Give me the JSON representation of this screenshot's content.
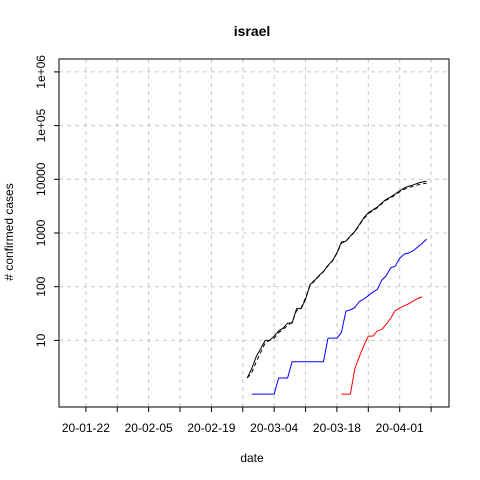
{
  "chart_data": {
    "type": "line",
    "title": "israel",
    "xlabel": "date",
    "ylabel": "# confirmed cases",
    "y_scale": "log",
    "grid": true,
    "grid_style": "dashed",
    "legend": "none",
    "xlim": [
      "2020-01-16",
      "2020-04-12"
    ],
    "ylim": [
      1,
      1000000
    ],
    "x_ticks": [
      {
        "date": "2020-01-22",
        "label": "20-01-22"
      },
      {
        "date": "2020-01-29",
        "label": ""
      },
      {
        "date": "2020-02-05",
        "label": "20-02-05"
      },
      {
        "date": "2020-02-12",
        "label": ""
      },
      {
        "date": "2020-02-19",
        "label": "20-02-19"
      },
      {
        "date": "2020-02-26",
        "label": ""
      },
      {
        "date": "2020-03-04",
        "label": "20-03-04"
      },
      {
        "date": "2020-03-11",
        "label": ""
      },
      {
        "date": "2020-03-18",
        "label": "20-03-18"
      },
      {
        "date": "2020-03-25",
        "label": ""
      },
      {
        "date": "2020-04-01",
        "label": "20-04-01"
      },
      {
        "date": "2020-04-08",
        "label": ""
      }
    ],
    "y_ticks": [
      {
        "value": 10,
        "label": "10"
      },
      {
        "value": 100,
        "label": "100"
      },
      {
        "value": 1000,
        "label": "1000"
      },
      {
        "value": 10000,
        "label": "10000"
      },
      {
        "value": 100000,
        "label": "1e+05"
      },
      {
        "value": 1000000,
        "label": "1e+06"
      }
    ],
    "series": [
      {
        "color": "#000000",
        "dash": "",
        "points": [
          [
            "2020-02-27",
            2
          ],
          [
            "2020-02-28",
            3
          ],
          [
            "2020-02-29",
            5
          ],
          [
            "2020-03-01",
            7
          ],
          [
            "2020-03-02",
            10
          ],
          [
            "2020-03-03",
            10
          ],
          [
            "2020-03-04",
            12
          ],
          [
            "2020-03-05",
            15
          ],
          [
            "2020-03-06",
            17
          ],
          [
            "2020-03-07",
            21
          ],
          [
            "2020-03-08",
            21
          ],
          [
            "2020-03-09",
            39
          ],
          [
            "2020-03-10",
            39
          ],
          [
            "2020-03-11",
            58
          ],
          [
            "2020-03-12",
            109
          ],
          [
            "2020-03-13",
            131
          ],
          [
            "2020-03-14",
            161
          ],
          [
            "2020-03-15",
            193
          ],
          [
            "2020-03-16",
            250
          ],
          [
            "2020-03-17",
            304
          ],
          [
            "2020-03-18",
            427
          ],
          [
            "2020-03-19",
            677
          ],
          [
            "2020-03-20",
            705
          ],
          [
            "2020-03-21",
            883
          ],
          [
            "2020-03-22",
            1071
          ],
          [
            "2020-03-23",
            1442
          ],
          [
            "2020-03-24",
            1930
          ],
          [
            "2020-03-25",
            2369
          ],
          [
            "2020-03-26",
            2693
          ],
          [
            "2020-03-27",
            3035
          ],
          [
            "2020-03-28",
            3619
          ],
          [
            "2020-03-29",
            4247
          ],
          [
            "2020-03-30",
            4695
          ],
          [
            "2020-03-31",
            5358
          ],
          [
            "2020-04-01",
            6092
          ],
          [
            "2020-04-02",
            6857
          ],
          [
            "2020-04-03",
            7428
          ],
          [
            "2020-04-04",
            7851
          ],
          [
            "2020-04-05",
            8430
          ],
          [
            "2020-04-06",
            8904
          ],
          [
            "2020-04-07",
            9248
          ]
        ]
      },
      {
        "color": "#000000",
        "dash": "4,3",
        "points": [
          [
            "2020-02-27",
            2
          ],
          [
            "2020-02-28",
            2.5
          ],
          [
            "2020-02-29",
            4
          ],
          [
            "2020-03-01",
            6
          ],
          [
            "2020-03-02",
            9
          ],
          [
            "2020-03-03",
            10
          ],
          [
            "2020-03-04",
            11
          ],
          [
            "2020-03-05",
            14
          ],
          [
            "2020-03-06",
            16
          ],
          [
            "2020-03-07",
            19
          ],
          [
            "2020-03-08",
            22
          ],
          [
            "2020-03-09",
            36
          ],
          [
            "2020-03-10",
            40
          ],
          [
            "2020-03-11",
            62
          ],
          [
            "2020-03-12",
            105
          ],
          [
            "2020-03-13",
            128
          ],
          [
            "2020-03-14",
            158
          ],
          [
            "2020-03-15",
            190
          ],
          [
            "2020-03-16",
            245
          ],
          [
            "2020-03-17",
            300
          ],
          [
            "2020-03-18",
            420
          ],
          [
            "2020-03-19",
            650
          ],
          [
            "2020-03-20",
            700
          ],
          [
            "2020-03-21",
            860
          ],
          [
            "2020-03-22",
            1050
          ],
          [
            "2020-03-23",
            1400
          ],
          [
            "2020-03-24",
            1850
          ],
          [
            "2020-03-25",
            2300
          ],
          [
            "2020-03-26",
            2600
          ],
          [
            "2020-03-27",
            2950
          ],
          [
            "2020-03-28",
            3500
          ],
          [
            "2020-03-29",
            4100
          ],
          [
            "2020-03-30",
            4500
          ],
          [
            "2020-03-31",
            5100
          ],
          [
            "2020-04-01",
            5800
          ],
          [
            "2020-04-02",
            6500
          ],
          [
            "2020-04-03",
            7000
          ],
          [
            "2020-04-04",
            7400
          ],
          [
            "2020-04-05",
            7850
          ],
          [
            "2020-04-06",
            8200
          ],
          [
            "2020-04-07",
            8500
          ]
        ]
      },
      {
        "color": "#0000ff",
        "dash": "",
        "points": [
          [
            "2020-02-28",
            1
          ],
          [
            "2020-02-29",
            1
          ],
          [
            "2020-03-01",
            1
          ],
          [
            "2020-03-02",
            1
          ],
          [
            "2020-03-03",
            1
          ],
          [
            "2020-03-04",
            1
          ],
          [
            "2020-03-05",
            2
          ],
          [
            "2020-03-06",
            2
          ],
          [
            "2020-03-07",
            2
          ],
          [
            "2020-03-08",
            4
          ],
          [
            "2020-03-09",
            4
          ],
          [
            "2020-03-10",
            4
          ],
          [
            "2020-03-11",
            4
          ],
          [
            "2020-03-12",
            4
          ],
          [
            "2020-03-13",
            4
          ],
          [
            "2020-03-14",
            4
          ],
          [
            "2020-03-15",
            4
          ],
          [
            "2020-03-16",
            11
          ],
          [
            "2020-03-17",
            11
          ],
          [
            "2020-03-18",
            11
          ],
          [
            "2020-03-19",
            14
          ],
          [
            "2020-03-20",
            35
          ],
          [
            "2020-03-21",
            37
          ],
          [
            "2020-03-22",
            41
          ],
          [
            "2020-03-23",
            53
          ],
          [
            "2020-03-24",
            59
          ],
          [
            "2020-03-25",
            68
          ],
          [
            "2020-03-26",
            79
          ],
          [
            "2020-03-27",
            89
          ],
          [
            "2020-03-28",
            132
          ],
          [
            "2020-03-29",
            161
          ],
          [
            "2020-03-30",
            224
          ],
          [
            "2020-03-31",
            241
          ],
          [
            "2020-04-01",
            338
          ],
          [
            "2020-04-02",
            404
          ],
          [
            "2020-04-03",
            424
          ],
          [
            "2020-04-04",
            467
          ],
          [
            "2020-04-05",
            545
          ],
          [
            "2020-04-06",
            640
          ],
          [
            "2020-04-07",
            770
          ]
        ]
      },
      {
        "color": "#ff0000",
        "dash": "",
        "points": [
          [
            "2020-03-19",
            1
          ],
          [
            "2020-03-20",
            1
          ],
          [
            "2020-03-21",
            1
          ],
          [
            "2020-03-22",
            3
          ],
          [
            "2020-03-23",
            5
          ],
          [
            "2020-03-24",
            8
          ],
          [
            "2020-03-25",
            12
          ],
          [
            "2020-03-26",
            12
          ],
          [
            "2020-03-27",
            15
          ],
          [
            "2020-03-28",
            16
          ],
          [
            "2020-03-29",
            20
          ],
          [
            "2020-03-30",
            26
          ],
          [
            "2020-03-31",
            36
          ],
          [
            "2020-04-01",
            40
          ],
          [
            "2020-04-02",
            44
          ],
          [
            "2020-04-03",
            48
          ],
          [
            "2020-04-04",
            54
          ],
          [
            "2020-04-05",
            60
          ],
          [
            "2020-04-06",
            65
          ]
        ]
      }
    ]
  }
}
